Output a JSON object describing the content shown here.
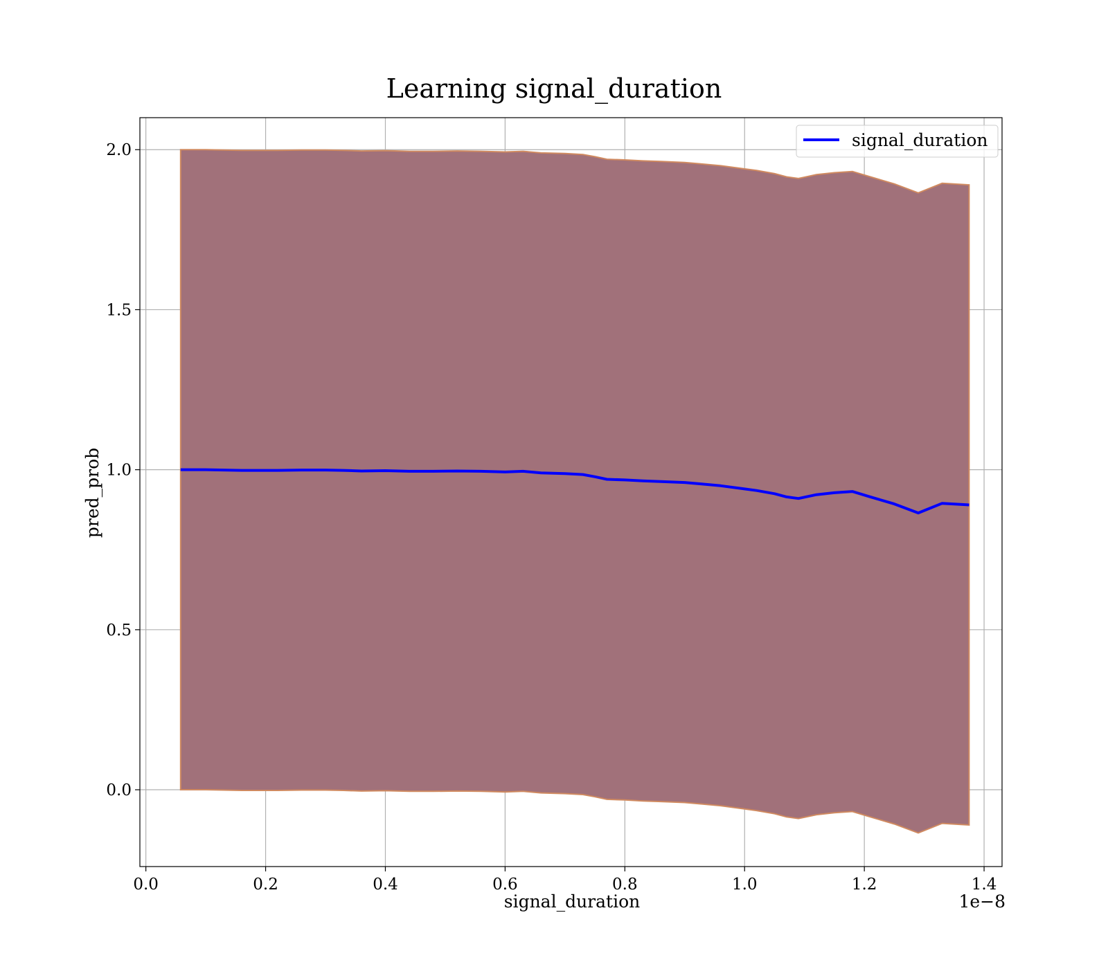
{
  "colors": {
    "line": "#0000ff",
    "band_fill": "#a1717a",
    "band_edge": "#d08a60",
    "grid": "#b0b0b0"
  },
  "chart_data": {
    "type": "line",
    "title": "Learning signal_duration",
    "xlabel": "signal_duration",
    "ylabel": "pred_prob",
    "x_offset_label": "1e−8",
    "xlim": [
      -0.01,
      1.43
    ],
    "ylim": [
      -0.24,
      2.1
    ],
    "x_ticks": [
      0.0,
      0.2,
      0.4,
      0.6,
      0.8,
      1.0,
      1.2,
      1.4
    ],
    "x_tick_labels": [
      "0.0",
      "0.2",
      "0.4",
      "0.6",
      "0.8",
      "1.0",
      "1.2",
      "1.4"
    ],
    "y_ticks": [
      0.0,
      0.5,
      1.0,
      1.5,
      2.0
    ],
    "y_tick_labels": [
      "0.0",
      "0.5",
      "1.0",
      "1.5",
      "2.0"
    ],
    "grid": true,
    "legend_position": "top-right",
    "series": [
      {
        "name": "signal_duration",
        "x": [
          0.058,
          0.08,
          0.1,
          0.13,
          0.16,
          0.19,
          0.22,
          0.26,
          0.3,
          0.33,
          0.36,
          0.4,
          0.44,
          0.48,
          0.52,
          0.56,
          0.6,
          0.63,
          0.66,
          0.7,
          0.73,
          0.75,
          0.77,
          0.8,
          0.83,
          0.86,
          0.9,
          0.93,
          0.96,
          1.0,
          1.02,
          1.05,
          1.07,
          1.09,
          1.12,
          1.15,
          1.18,
          1.21,
          1.25,
          1.29,
          1.33,
          1.375
        ],
        "y": [
          1.0,
          1.0,
          1.0,
          0.999,
          0.998,
          0.998,
          0.998,
          0.999,
          0.999,
          0.998,
          0.996,
          0.997,
          0.995,
          0.995,
          0.996,
          0.995,
          0.993,
          0.995,
          0.99,
          0.988,
          0.985,
          0.978,
          0.97,
          0.968,
          0.965,
          0.963,
          0.96,
          0.955,
          0.95,
          0.94,
          0.935,
          0.925,
          0.915,
          0.91,
          0.922,
          0.928,
          0.932,
          0.915,
          0.893,
          0.865,
          0.895,
          0.89
        ],
        "upper": [
          2.0,
          2.0,
          2.0,
          1.999,
          1.998,
          1.998,
          1.998,
          1.999,
          1.999,
          1.998,
          1.996,
          1.997,
          1.995,
          1.995,
          1.996,
          1.995,
          1.993,
          1.995,
          1.99,
          1.988,
          1.985,
          1.978,
          1.97,
          1.968,
          1.965,
          1.963,
          1.96,
          1.955,
          1.95,
          1.94,
          1.935,
          1.925,
          1.915,
          1.91,
          1.922,
          1.928,
          1.932,
          1.915,
          1.893,
          1.865,
          1.895,
          1.89
        ],
        "lower": [
          0.0,
          0.0,
          0.0,
          -0.001,
          -0.002,
          -0.002,
          -0.002,
          -0.001,
          -0.001,
          -0.002,
          -0.004,
          -0.003,
          -0.005,
          -0.005,
          -0.004,
          -0.005,
          -0.007,
          -0.005,
          -0.01,
          -0.012,
          -0.015,
          -0.022,
          -0.03,
          -0.032,
          -0.035,
          -0.037,
          -0.04,
          -0.045,
          -0.05,
          -0.06,
          -0.065,
          -0.075,
          -0.085,
          -0.09,
          -0.078,
          -0.072,
          -0.068,
          -0.085,
          -0.107,
          -0.135,
          -0.105,
          -0.11
        ]
      }
    ]
  }
}
